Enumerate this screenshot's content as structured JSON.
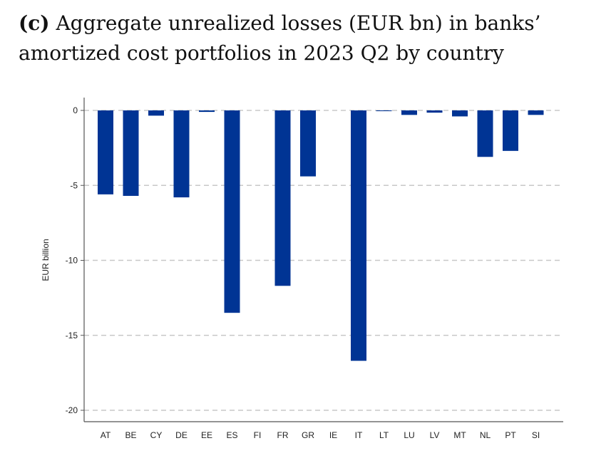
{
  "caption": {
    "panel": "(c)",
    "text": "Aggregate unrealized losses (EUR bn) in banks’ amortized cost portfolios in 2023 Q2 by country"
  },
  "colors": {
    "bar": "#003494",
    "grid": "#c8c8c8",
    "axis": "#555555"
  },
  "chart_data": {
    "type": "bar",
    "title": "Aggregate unrealized losses (EUR bn) in banks’ amortized cost portfolios in 2023 Q2 by country",
    "xlabel": "",
    "ylabel": "EUR billion",
    "ylim": [
      -20.8,
      0.8
    ],
    "yticks": [
      0,
      -5,
      -10,
      -15,
      -20
    ],
    "grid": "horizontal dashed",
    "categories": [
      "AT",
      "BE",
      "CY",
      "DE",
      "EE",
      "ES",
      "FI",
      "FR",
      "GR",
      "IE",
      "IT",
      "LT",
      "LU",
      "LV",
      "MT",
      "NL",
      "PT",
      "SI"
    ],
    "values": [
      -5.6,
      -5.7,
      -0.35,
      -5.8,
      -0.1,
      -13.5,
      0,
      -11.7,
      -4.4,
      0,
      -16.7,
      -0.05,
      -0.3,
      -0.15,
      -0.4,
      -3.1,
      -2.7,
      -0.3
    ]
  }
}
